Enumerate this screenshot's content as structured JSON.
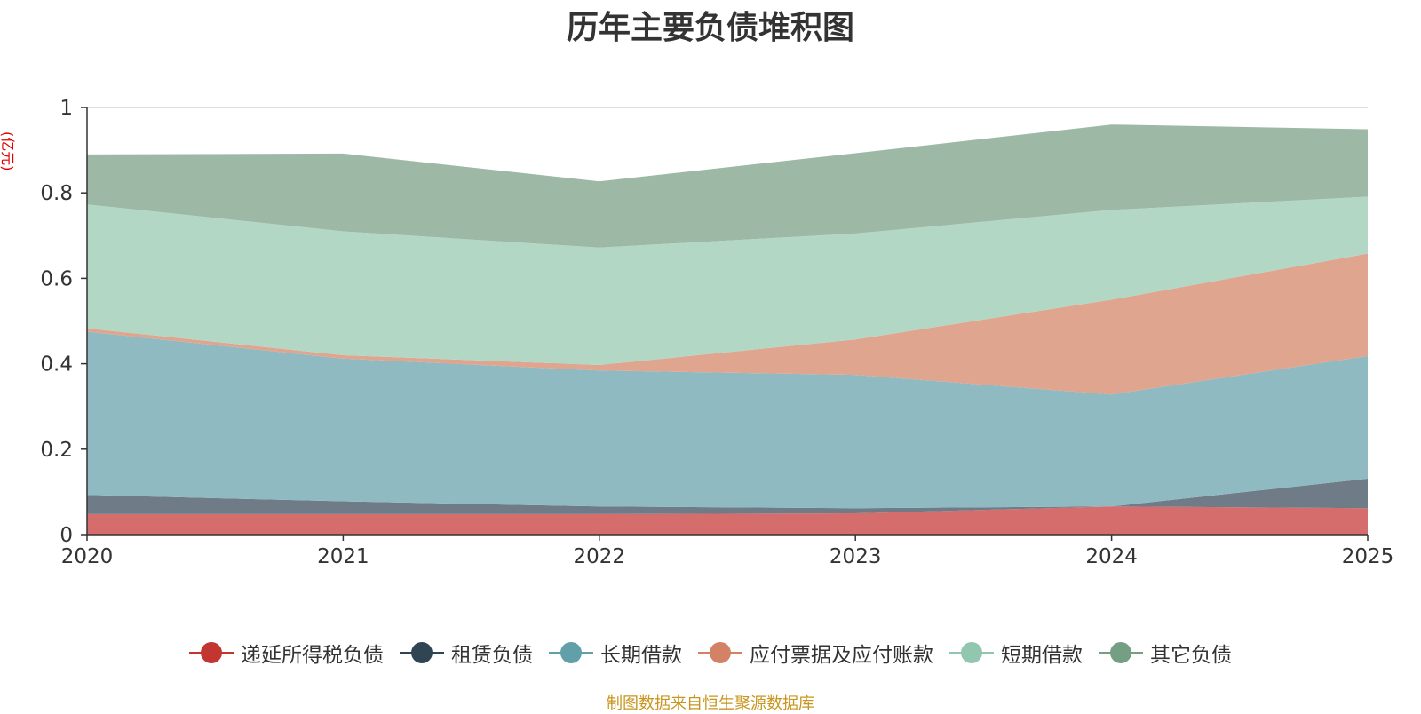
{
  "chart_data": {
    "type": "area",
    "stacked": true,
    "title": "历年主要负债堆积图",
    "unit_label": "(亿元)",
    "x": [
      "2020",
      "2021",
      "2022",
      "2023",
      "2024",
      "2025"
    ],
    "ylim": [
      0,
      1
    ],
    "yticks": [
      "0",
      "0.2",
      "0.4",
      "0.6",
      "0.8",
      "1"
    ],
    "grid": true,
    "legend_position": "bottom",
    "series": [
      {
        "name": "递延所得税负债",
        "color": "#c23531",
        "fill": "#d46d6b",
        "values": [
          0.048,
          0.048,
          0.048,
          0.05,
          0.066,
          0.062
        ]
      },
      {
        "name": "租赁负债",
        "color": "#2f4554",
        "fill": "#6f7c87",
        "values": [
          0.045,
          0.03,
          0.018,
          0.012,
          0.0,
          0.069
        ]
      },
      {
        "name": "长期借款",
        "color": "#61a0a8",
        "fill": "#8fbac1",
        "values": [
          0.382,
          0.334,
          0.318,
          0.312,
          0.262,
          0.287
        ]
      },
      {
        "name": "应付票据及应付账款",
        "color": "#d48265",
        "fill": "#e0a58f",
        "values": [
          0.008,
          0.008,
          0.013,
          0.083,
          0.222,
          0.24
        ]
      },
      {
        "name": "短期借款",
        "color": "#91c7ae",
        "fill": "#b2d8c5",
        "values": [
          0.29,
          0.29,
          0.275,
          0.248,
          0.21,
          0.133
        ]
      },
      {
        "name": "其它负债",
        "color": "#749f83",
        "fill": "#9db9a6",
        "values": [
          0.117,
          0.182,
          0.155,
          0.188,
          0.2,
          0.158
        ]
      }
    ]
  },
  "source_text": "制图数据来自恒生聚源数据库"
}
